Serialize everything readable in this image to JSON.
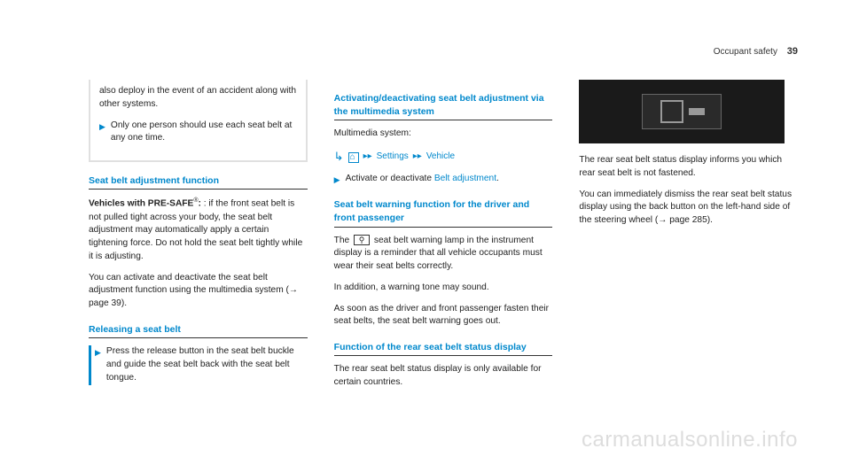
{
  "header": {
    "section": "Occupant safety",
    "page_num": "39"
  },
  "col1": {
    "continued": {
      "text1": "also deploy in the event of an accident along with other systems.",
      "step1": "Only one person should use each seat belt at any one time."
    },
    "h1": "Seat belt adjustment function",
    "p1_bold": "Vehicles with PRE-SAFE",
    "p1_reg": "®",
    "p1_rest": ": if the front seat belt is not pulled tight across your body, the seat belt adjustment may automatically apply a certain tightening force. Do not hold the seat belt tightly while it is adjusting.",
    "p2": "You can activate and deactivate the seat belt adjustment function using the multimedia system (→ page 39).",
    "h2": "Releasing a seat belt",
    "step2": "Press the release button in the seat belt buckle and guide the seat belt back with the seat belt tongue."
  },
  "col2": {
    "h1": "Activating/deactivating seat belt adjustment via the multimedia system",
    "p1": "Multimedia system:",
    "bc1": "Settings",
    "bc2": "Vehicle",
    "step1a": "Activate or deactivate ",
    "step1b": "Belt adjustment",
    "step1c": ".",
    "h2": "Seat belt warning function for the driver and front passenger",
    "p2a": "The ",
    "p2b": " seat belt warning lamp in the instrument display is a reminder that all vehicle occupants must wear their seat belts correctly.",
    "p3": "In addition, a warning tone may sound.",
    "p4": "As soon as the driver and front passenger fasten their seat belts, the seat belt warning goes out.",
    "h3": "Function of the rear seat belt status display",
    "p5": "The rear seat belt status display is only available for certain countries."
  },
  "col3": {
    "p1": "The rear seat belt status display informs you which rear seat belt is not fastened.",
    "p2": "You can immediately dismiss the rear seat belt status display using the back button on the left-hand side of the steering wheel (→ page 285)."
  },
  "watermark": "carmanualsonline.info"
}
